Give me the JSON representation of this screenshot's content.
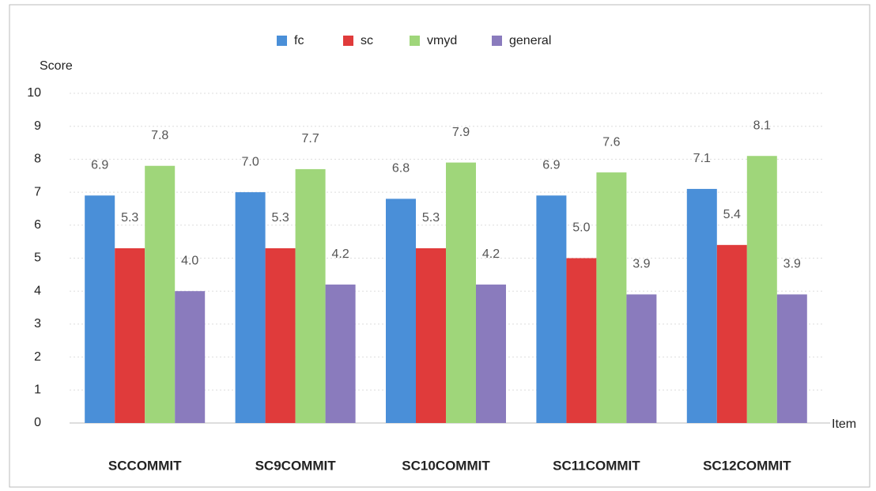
{
  "chart_data": {
    "type": "bar",
    "y_label": "Score",
    "x_label": "Item",
    "categories": [
      "SCCOMMIT",
      "SC9COMMIT",
      "SC10COMMIT",
      "SC11COMMIT",
      "SC12COMMIT"
    ],
    "series": [
      {
        "name": "fc",
        "color": "#4a8fd8",
        "values": [
          6.9,
          7.0,
          6.8,
          6.9,
          7.1
        ],
        "value_labels": [
          "6.9",
          "7.0",
          "6.8",
          "6.9",
          "7.1"
        ]
      },
      {
        "name": "sc",
        "color": "#e03b3b",
        "values": [
          5.3,
          5.3,
          5.3,
          5.0,
          5.4
        ],
        "value_labels": [
          "5.3",
          "5.3",
          "5.3",
          "5.0",
          "5.4"
        ]
      },
      {
        "name": "vmyd",
        "color": "#9fd67a",
        "values": [
          7.8,
          7.7,
          7.9,
          7.6,
          8.1
        ],
        "value_labels": [
          "7.8",
          "7.7",
          "7.9",
          "7.6",
          "8.1"
        ]
      },
      {
        "name": "general",
        "color": "#8a7bbd",
        "values": [
          4.0,
          4.2,
          4.2,
          3.9,
          3.9
        ],
        "value_labels": [
          "4.0",
          "4.2",
          "4.2",
          "3.9",
          "3.9"
        ]
      }
    ],
    "ylim": [
      0,
      10
    ],
    "yticks": [
      0,
      1,
      2,
      3,
      4,
      5,
      6,
      7,
      8,
      9,
      10
    ],
    "grid": true,
    "legend": "top"
  }
}
